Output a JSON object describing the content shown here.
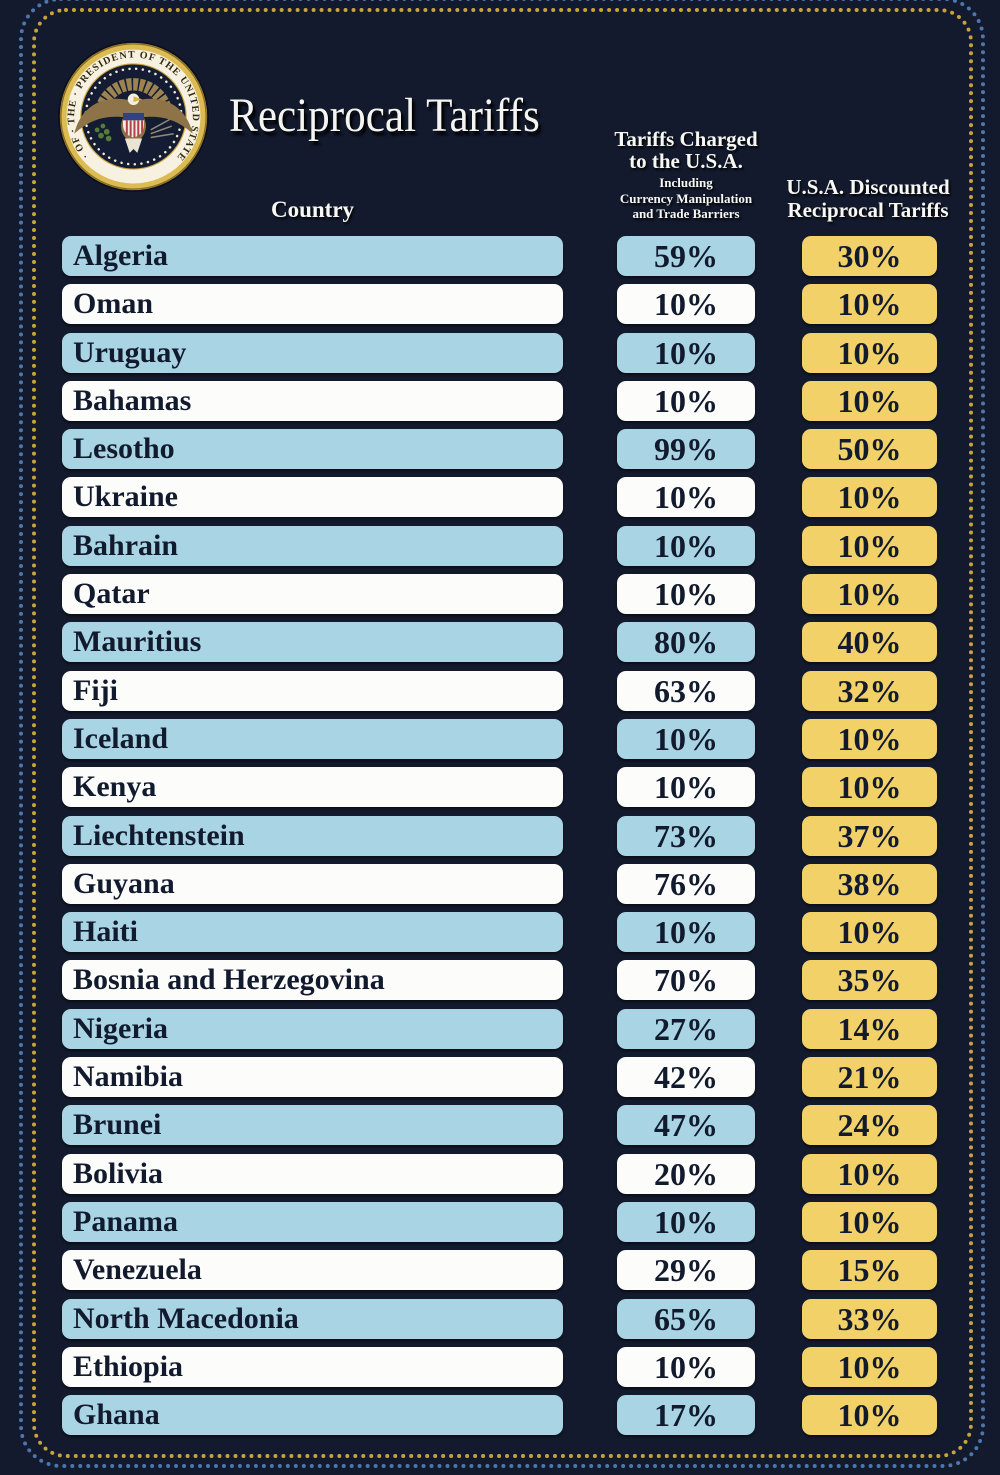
{
  "header": {
    "title": "Reciprocal Tariffs",
    "seal_text": "SEAL · OF · THE · PRESIDENT OF THE UNITED STATES · · ·",
    "col_country": "Country",
    "col_charged_line1": "Tariffs Charged",
    "col_charged_line2": "to the U.S.A.",
    "col_charged_sub": [
      "Including",
      "Currency Manipulation",
      "and Trade Barriers"
    ],
    "col_discount_line1": "U.S.A. Discounted",
    "col_discount_line2": "Reciprocal Tariffs"
  },
  "colors": {
    "background": "#131a2d",
    "row_blue": "#a9d4e4",
    "row_white": "#fcfcfb",
    "cell_gold": "#f2d169",
    "bar_text": "#121a2e",
    "border_dots_blue": "#4d77ac",
    "border_dots_gold": "#c7a33c",
    "seal_gold": "#dcbc52"
  },
  "chart_data": {
    "type": "table",
    "title": "Reciprocal Tariffs",
    "columns": [
      "Country",
      "Tariffs Charged to the U.S.A. Including Currency Manipulation and Trade Barriers",
      "U.S.A. Discounted Reciprocal Tariffs"
    ],
    "rows": [
      {
        "country": "Algeria",
        "charged": "59%",
        "discounted": "30%"
      },
      {
        "country": "Oman",
        "charged": "10%",
        "discounted": "10%"
      },
      {
        "country": "Uruguay",
        "charged": "10%",
        "discounted": "10%"
      },
      {
        "country": "Bahamas",
        "charged": "10%",
        "discounted": "10%"
      },
      {
        "country": "Lesotho",
        "charged": "99%",
        "discounted": "50%"
      },
      {
        "country": "Ukraine",
        "charged": "10%",
        "discounted": "10%"
      },
      {
        "country": "Bahrain",
        "charged": "10%",
        "discounted": "10%"
      },
      {
        "country": "Qatar",
        "charged": "10%",
        "discounted": "10%"
      },
      {
        "country": "Mauritius",
        "charged": "80%",
        "discounted": "40%"
      },
      {
        "country": "Fiji",
        "charged": "63%",
        "discounted": "32%"
      },
      {
        "country": "Iceland",
        "charged": "10%",
        "discounted": "10%"
      },
      {
        "country": "Kenya",
        "charged": "10%",
        "discounted": "10%"
      },
      {
        "country": "Liechtenstein",
        "charged": "73%",
        "discounted": "37%"
      },
      {
        "country": "Guyana",
        "charged": "76%",
        "discounted": "38%"
      },
      {
        "country": "Haiti",
        "charged": "10%",
        "discounted": "10%"
      },
      {
        "country": "Bosnia and Herzegovina",
        "charged": "70%",
        "discounted": "35%"
      },
      {
        "country": "Nigeria",
        "charged": "27%",
        "discounted": "14%"
      },
      {
        "country": "Namibia",
        "charged": "42%",
        "discounted": "21%"
      },
      {
        "country": "Brunei",
        "charged": "47%",
        "discounted": "24%"
      },
      {
        "country": "Bolivia",
        "charged": "20%",
        "discounted": "10%"
      },
      {
        "country": "Panama",
        "charged": "10%",
        "discounted": "10%"
      },
      {
        "country": "Venezuela",
        "charged": "29%",
        "discounted": "15%"
      },
      {
        "country": "North Macedonia",
        "charged": "65%",
        "discounted": "33%"
      },
      {
        "country": "Ethiopia",
        "charged": "10%",
        "discounted": "10%"
      },
      {
        "country": "Ghana",
        "charged": "17%",
        "discounted": "10%"
      }
    ]
  }
}
